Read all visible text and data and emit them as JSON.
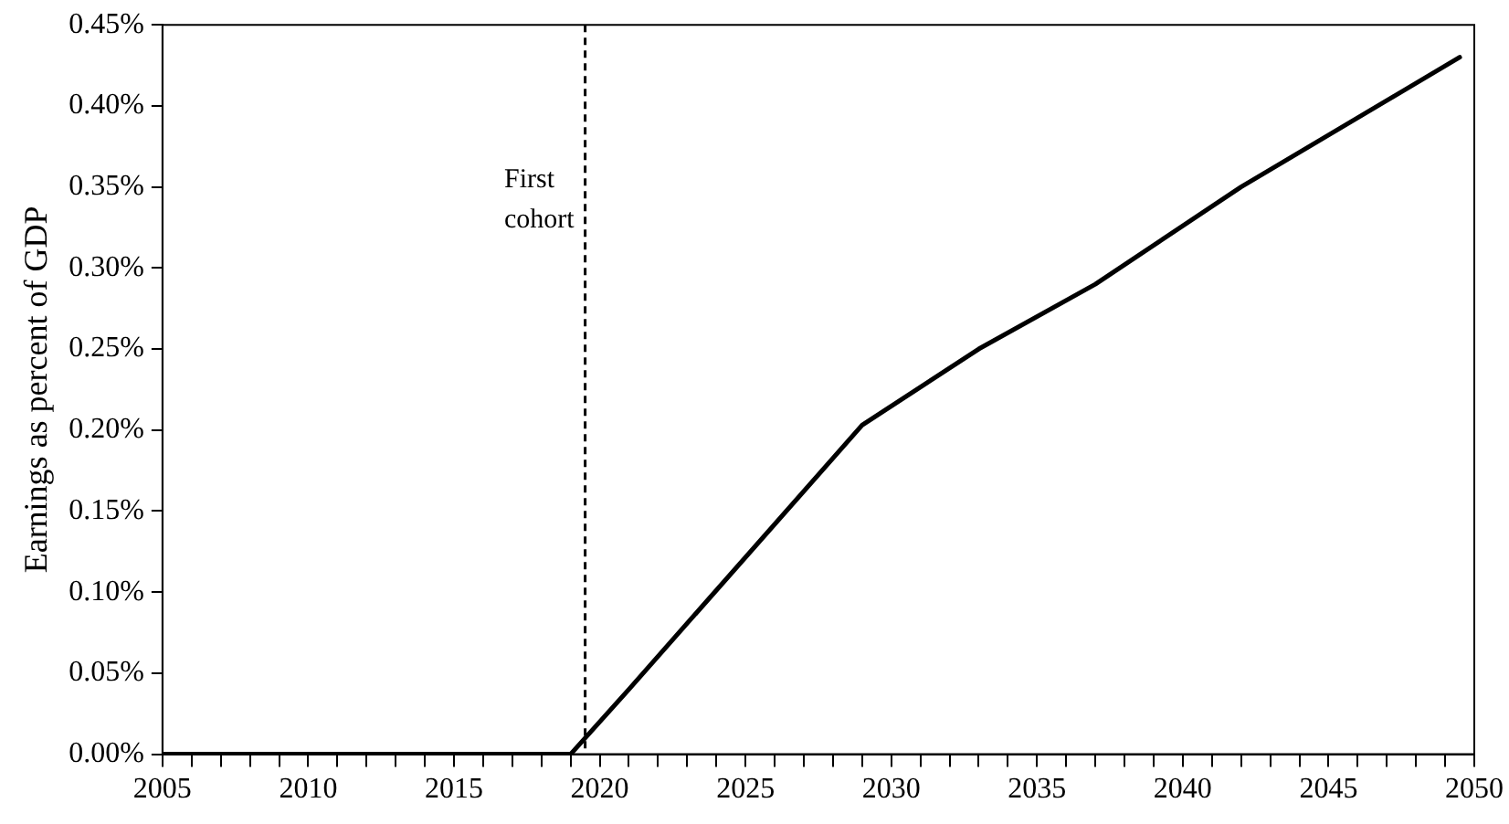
{
  "chart_data": {
    "type": "line",
    "ylabel": "Earnings as percent of GDP",
    "series": [
      {
        "color": "#000000",
        "x": [
          2005,
          2019,
          2021,
          2029,
          2033,
          2037,
          2042,
          2049.5
        ],
        "values": [
          0,
          0,
          0.04,
          0.203,
          0.25,
          0.29,
          0.35,
          0.43
        ]
      }
    ],
    "xlim": [
      2005,
      2050
    ],
    "xticks": [
      2005,
      {
        "value": 2006,
        "label": null
      },
      {
        "value": 2007,
        "label": null
      },
      {
        "value": 2008,
        "label": null
      },
      {
        "value": 2009,
        "label": null
      },
      2010,
      {
        "value": 2011,
        "label": null
      },
      {
        "value": 2012,
        "label": null
      },
      {
        "value": 2013,
        "label": null
      },
      {
        "value": 2014,
        "label": null
      },
      2015,
      {
        "value": 2016,
        "label": null
      },
      {
        "value": 2017,
        "label": null
      },
      {
        "value": 2018,
        "label": null
      },
      {
        "value": 2019,
        "label": null
      },
      2020,
      {
        "value": 2021,
        "label": null
      },
      {
        "value": 2022,
        "label": null
      },
      {
        "value": 2023,
        "label": null
      },
      {
        "value": 2024,
        "label": null
      },
      2025,
      {
        "value": 2026,
        "label": null
      },
      {
        "value": 2027,
        "label": null
      },
      {
        "value": 2028,
        "label": null
      },
      {
        "value": 2029,
        "label": null
      },
      2030,
      {
        "value": 2031,
        "label": null
      },
      {
        "value": 2032,
        "label": null
      },
      {
        "value": 2033,
        "label": null
      },
      {
        "value": 2034,
        "label": null
      },
      2035,
      {
        "value": 2036,
        "label": null
      },
      {
        "value": 2037,
        "label": null
      },
      {
        "value": 2038,
        "label": null
      },
      {
        "value": 2039,
        "label": null
      },
      2040,
      {
        "value": 2041,
        "label": null
      },
      {
        "value": 2042,
        "label": null
      },
      {
        "value": 2043,
        "label": null
      },
      {
        "value": 2044,
        "label": null
      },
      2045,
      {
        "value": 2046,
        "label": null
      },
      {
        "value": 2047,
        "label": null
      },
      {
        "value": 2048,
        "label": null
      },
      {
        "value": 2049,
        "label": null
      },
      2050
    ],
    "ylim": [
      0,
      0.45
    ],
    "yticks": [
      {
        "value": 0,
        "label": "0.00%"
      },
      {
        "value": 0.05,
        "label": "0.05%"
      },
      {
        "value": 0.1,
        "label": "0.10%"
      },
      {
        "value": 0.15,
        "label": "0.15%"
      },
      {
        "value": 0.2,
        "label": "0.20%"
      },
      {
        "value": 0.25,
        "label": "0.25%"
      },
      {
        "value": 0.3,
        "label": "0.30%"
      },
      {
        "value": 0.35,
        "label": "0.35%"
      },
      {
        "value": 0.4,
        "label": "0.40%"
      },
      {
        "value": 0.45,
        "label": "0.45%"
      }
    ],
    "ref_lines": [
      {
        "axis": "x",
        "value": 2019.5,
        "label": "First cohort",
        "color": "#000000",
        "line_style": "dashed"
      }
    ],
    "grid": false,
    "legend": false,
    "marker": "none",
    "line_style": "solid"
  }
}
